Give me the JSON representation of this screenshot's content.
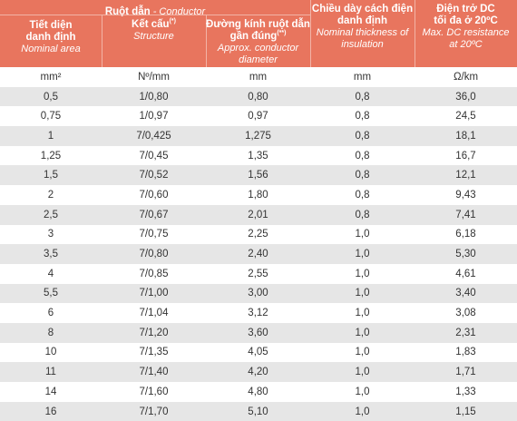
{
  "header": {
    "conductor_group_vi": "Ruột dẫn",
    "conductor_group_en": " - Conductor",
    "area_vi_line1": "Tiết diện",
    "area_vi_line2": "danh định",
    "area_en": "Nominal area",
    "structure_vi": "Kết cấu",
    "structure_sup": "(*)",
    "structure_en": "Structure",
    "diameter_vi_line1": "Đường kính ruột dẫn",
    "diameter_vi_line2": "gần đúng",
    "diameter_sup": "(**)",
    "diameter_en_line1": "Approx. conductor",
    "diameter_en_line2": "diameter",
    "insulation_vi_line1": "Chiều dày cách điện",
    "insulation_vi_line2": "danh định",
    "insulation_en_line1": "Nominal thickness of",
    "insulation_en_line2": "insulation",
    "resistance_vi_line1": "Điện trở DC",
    "resistance_vi_line2": "tối đa ở 20ºC",
    "resistance_en_line1": "Max. DC resistance",
    "resistance_en_line2": "at 20ºC"
  },
  "units": {
    "area": "mm²",
    "structure": "Nº/mm",
    "diameter": "mm",
    "insulation": "mm",
    "resistance": "Ω/km"
  },
  "rows": [
    {
      "area": "0,5",
      "structure": "1/0,80",
      "diameter": "0,80",
      "insulation": "0,8",
      "resistance": "36,0"
    },
    {
      "area": "0,75",
      "structure": "1/0,97",
      "diameter": "0,97",
      "insulation": "0,8",
      "resistance": "24,5"
    },
    {
      "area": "1",
      "structure": "7/0,425",
      "diameter": "1,275",
      "insulation": "0,8",
      "resistance": "18,1"
    },
    {
      "area": "1,25",
      "structure": "7/0,45",
      "diameter": "1,35",
      "insulation": "0,8",
      "resistance": "16,7"
    },
    {
      "area": "1,5",
      "structure": "7/0,52",
      "diameter": "1,56",
      "insulation": "0,8",
      "resistance": "12,1"
    },
    {
      "area": "2",
      "structure": "7/0,60",
      "diameter": "1,80",
      "insulation": "0,8",
      "resistance": "9,43"
    },
    {
      "area": "2,5",
      "structure": "7/0,67",
      "diameter": "2,01",
      "insulation": "0,8",
      "resistance": "7,41"
    },
    {
      "area": "3",
      "structure": "7/0,75",
      "diameter": "2,25",
      "insulation": "1,0",
      "resistance": "6,18"
    },
    {
      "area": "3,5",
      "structure": "7/0,80",
      "diameter": "2,40",
      "insulation": "1,0",
      "resistance": "5,30"
    },
    {
      "area": "4",
      "structure": "7/0,85",
      "diameter": "2,55",
      "insulation": "1,0",
      "resistance": "4,61"
    },
    {
      "area": "5,5",
      "structure": "7/1,00",
      "diameter": "3,00",
      "insulation": "1,0",
      "resistance": "3,40"
    },
    {
      "area": "6",
      "structure": "7/1,04",
      "diameter": "3,12",
      "insulation": "1,0",
      "resistance": "3,08"
    },
    {
      "area": "8",
      "structure": "7/1,20",
      "diameter": "3,60",
      "insulation": "1,0",
      "resistance": "2,31"
    },
    {
      "area": "10",
      "structure": "7/1,35",
      "diameter": "4,05",
      "insulation": "1,0",
      "resistance": "1,83"
    },
    {
      "area": "11",
      "structure": "7/1,40",
      "diameter": "4,20",
      "insulation": "1,0",
      "resistance": "1,71"
    },
    {
      "area": "14",
      "structure": "7/1,60",
      "diameter": "4,80",
      "insulation": "1,0",
      "resistance": "1,33"
    },
    {
      "area": "16",
      "structure": "7/1,70",
      "diameter": "5,10",
      "insulation": "1,0",
      "resistance": "1,15"
    }
  ]
}
